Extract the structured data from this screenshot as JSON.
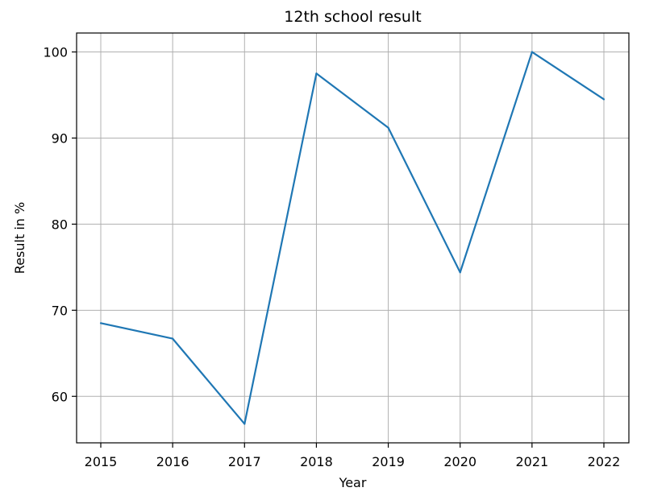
{
  "chart_data": {
    "type": "line",
    "title": "12th school result",
    "xlabel": "Year",
    "ylabel": "Result in %",
    "x": [
      "2015",
      "2016",
      "2017",
      "2018",
      "2019",
      "2020",
      "2021",
      "2022"
    ],
    "series": [
      {
        "values": [
          68.5,
          66.7,
          56.8,
          97.5,
          91.2,
          74.4,
          100.0,
          94.5
        ],
        "color": "#1f77b4"
      }
    ],
    "yticks": [
      60,
      70,
      80,
      90,
      100
    ],
    "ylim": [
      54.6,
      102.2
    ],
    "grid": true,
    "legend": false
  }
}
